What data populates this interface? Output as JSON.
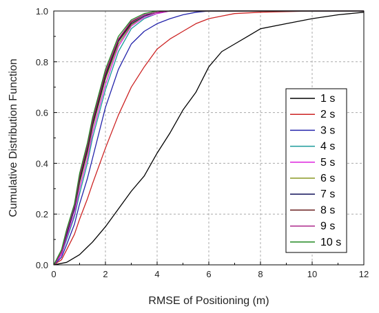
{
  "chart_data": {
    "type": "line",
    "title": "",
    "xlabel": "RMSE of Positioning (m)",
    "ylabel": "Cumulative Distribution Function",
    "xlim": [
      0,
      12
    ],
    "ylim": [
      0,
      1.0
    ],
    "xticks": [
      0,
      2,
      4,
      6,
      8,
      10,
      12
    ],
    "yticks": [
      0.0,
      0.2,
      0.4,
      0.6,
      0.8,
      1.0
    ],
    "xtick_labels": [
      "0",
      "2",
      "4",
      "6",
      "8",
      "10",
      "12"
    ],
    "ytick_labels": [
      "0.0",
      "0.2",
      "0.4",
      "0.6",
      "0.8",
      "1.0"
    ],
    "grid": true,
    "legend_position": "lower-right",
    "series": [
      {
        "name": "1 s",
        "color": "#000000",
        "x": [
          0,
          0.5,
          1.0,
          1.5,
          2.0,
          2.5,
          3.0,
          3.5,
          4.0,
          4.5,
          5.0,
          5.5,
          6.0,
          6.5,
          7.0,
          7.5,
          8.0,
          9.0,
          10.0,
          11.0,
          12.0
        ],
        "y": [
          0,
          0.01,
          0.04,
          0.09,
          0.15,
          0.22,
          0.29,
          0.35,
          0.44,
          0.52,
          0.61,
          0.68,
          0.78,
          0.84,
          0.87,
          0.9,
          0.93,
          0.95,
          0.97,
          0.985,
          0.995
        ]
      },
      {
        "name": "2 s",
        "color": "#cc2222",
        "x": [
          0,
          0.3,
          0.5,
          0.8,
          1.0,
          1.3,
          1.5,
          2.0,
          2.5,
          3.0,
          3.5,
          4.0,
          4.5,
          5.0,
          5.5,
          6.0,
          6.5,
          7.0,
          8.0,
          10.0,
          12.0
        ],
        "y": [
          0,
          0.02,
          0.06,
          0.12,
          0.18,
          0.26,
          0.32,
          0.46,
          0.59,
          0.7,
          0.78,
          0.85,
          0.89,
          0.92,
          0.95,
          0.97,
          0.98,
          0.99,
          0.995,
          1.0,
          1.0
        ]
      },
      {
        "name": "3 s",
        "color": "#2222aa",
        "x": [
          0,
          0.3,
          0.5,
          0.8,
          1.0,
          1.3,
          1.5,
          2.0,
          2.5,
          3.0,
          3.5,
          4.0,
          4.5,
          5.0,
          5.5,
          6.0,
          12.0
        ],
        "y": [
          0,
          0.03,
          0.08,
          0.16,
          0.24,
          0.34,
          0.42,
          0.62,
          0.77,
          0.87,
          0.92,
          0.95,
          0.97,
          0.985,
          0.995,
          1.0,
          1.0
        ]
      },
      {
        "name": "4 s",
        "color": "#1a9a9a",
        "x": [
          0,
          0.3,
          0.5,
          0.8,
          1.0,
          1.3,
          1.5,
          2.0,
          2.5,
          3.0,
          3.5,
          4.0,
          4.5,
          12.0
        ],
        "y": [
          0,
          0.04,
          0.1,
          0.19,
          0.28,
          0.4,
          0.5,
          0.69,
          0.84,
          0.93,
          0.97,
          0.99,
          1.0,
          1.0
        ]
      },
      {
        "name": "5 s",
        "color": "#dd22dd",
        "x": [
          0,
          0.3,
          0.5,
          0.8,
          1.0,
          1.3,
          1.5,
          2.0,
          2.5,
          3.0,
          3.5,
          4.0,
          4.5,
          12.0
        ],
        "y": [
          0,
          0.04,
          0.11,
          0.2,
          0.3,
          0.42,
          0.52,
          0.71,
          0.86,
          0.94,
          0.975,
          0.99,
          1.0,
          1.0
        ]
      },
      {
        "name": "6 s",
        "color": "#889922",
        "x": [
          0,
          0.3,
          0.5,
          0.8,
          1.0,
          1.3,
          1.5,
          2.0,
          2.5,
          3.0,
          3.5,
          4.0,
          4.5,
          12.0
        ],
        "y": [
          0,
          0.05,
          0.12,
          0.22,
          0.32,
          0.44,
          0.54,
          0.73,
          0.87,
          0.945,
          0.98,
          0.995,
          1.0,
          1.0
        ]
      },
      {
        "name": "7 s",
        "color": "#11115a",
        "x": [
          0,
          0.3,
          0.5,
          0.8,
          1.0,
          1.3,
          1.5,
          2.0,
          2.5,
          3.0,
          3.5,
          4.0,
          4.5,
          12.0
        ],
        "y": [
          0,
          0.05,
          0.12,
          0.22,
          0.33,
          0.45,
          0.55,
          0.74,
          0.88,
          0.95,
          0.98,
          0.995,
          1.0,
          1.0
        ]
      },
      {
        "name": "8 s",
        "color": "#661a1a",
        "x": [
          0,
          0.3,
          0.5,
          0.8,
          1.0,
          1.3,
          1.5,
          2.0,
          2.5,
          3.0,
          3.5,
          4.0,
          4.5,
          12.0
        ],
        "y": [
          0,
          0.05,
          0.13,
          0.23,
          0.34,
          0.46,
          0.56,
          0.75,
          0.885,
          0.955,
          0.985,
          0.995,
          1.0,
          1.0
        ]
      },
      {
        "name": "9 s",
        "color": "#aa2288",
        "x": [
          0,
          0.3,
          0.5,
          0.8,
          1.0,
          1.3,
          1.5,
          2.0,
          2.5,
          3.0,
          3.5,
          4.0,
          4.5,
          12.0
        ],
        "y": [
          0,
          0.05,
          0.13,
          0.23,
          0.35,
          0.47,
          0.57,
          0.76,
          0.89,
          0.96,
          0.985,
          0.995,
          1.0,
          1.0
        ]
      },
      {
        "name": "10 s",
        "color": "#228822",
        "x": [
          0,
          0.3,
          0.5,
          0.8,
          1.0,
          1.3,
          1.5,
          2.0,
          2.5,
          3.0,
          3.5,
          4.0,
          4.5,
          12.0
        ],
        "y": [
          0,
          0.06,
          0.14,
          0.24,
          0.36,
          0.48,
          0.58,
          0.77,
          0.9,
          0.965,
          0.99,
          1.0,
          1.0,
          1.0
        ]
      }
    ]
  }
}
